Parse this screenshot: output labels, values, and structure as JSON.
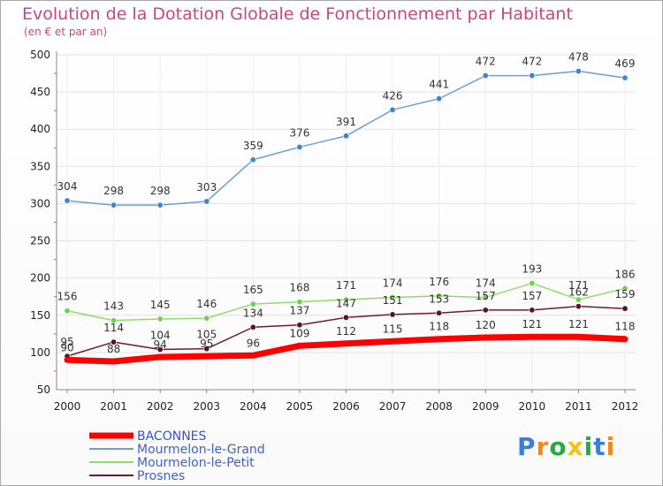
{
  "chart_data": {
    "type": "line",
    "title": "Evolution de la Dotation Globale de Fonctionnement par Habitant",
    "subtitle": "(en € et par an)",
    "x": [
      "2000",
      "2001",
      "2002",
      "2003",
      "2004",
      "2005",
      "2006",
      "2007",
      "2008",
      "2009",
      "2010",
      "2011",
      "2012"
    ],
    "y_ticks": [
      "50",
      "100",
      "150",
      "200",
      "250",
      "300",
      "350",
      "400",
      "450",
      "500"
    ],
    "ylim": [
      50,
      500
    ],
    "grid": true,
    "legend_position": "bottom-left",
    "series": [
      {
        "name": "BACONNES",
        "color": "#ff0000",
        "values": [
          90,
          88,
          94,
          95,
          96,
          109,
          112,
          115,
          118,
          120,
          121,
          121,
          118
        ]
      },
      {
        "name": "Mourmelon-le-Grand",
        "color": "#6d9ed1",
        "values": [
          304,
          298,
          298,
          303,
          359,
          376,
          391,
          426,
          441,
          472,
          472,
          478,
          469
        ]
      },
      {
        "name": "Mourmelon-le-Petit",
        "color": "#8fdc6a",
        "values": [
          156,
          143,
          145,
          146,
          165,
          168,
          171,
          174,
          176,
          174,
          193,
          171,
          186
        ]
      },
      {
        "name": "Prosnes",
        "color": "#6b1f2a",
        "values": [
          95,
          114,
          104,
          105,
          134,
          137,
          147,
          151,
          153,
          157,
          157,
          162,
          159
        ]
      }
    ]
  },
  "logo": {
    "letters": [
      "P",
      "r",
      "o",
      "x",
      "i",
      "t",
      "i"
    ],
    "colors": [
      "#3a7fd5",
      "#f08a1c",
      "#2aa845",
      "#f0c419",
      "#2aa845",
      "#3a7fd5",
      "#f08a1c"
    ]
  }
}
